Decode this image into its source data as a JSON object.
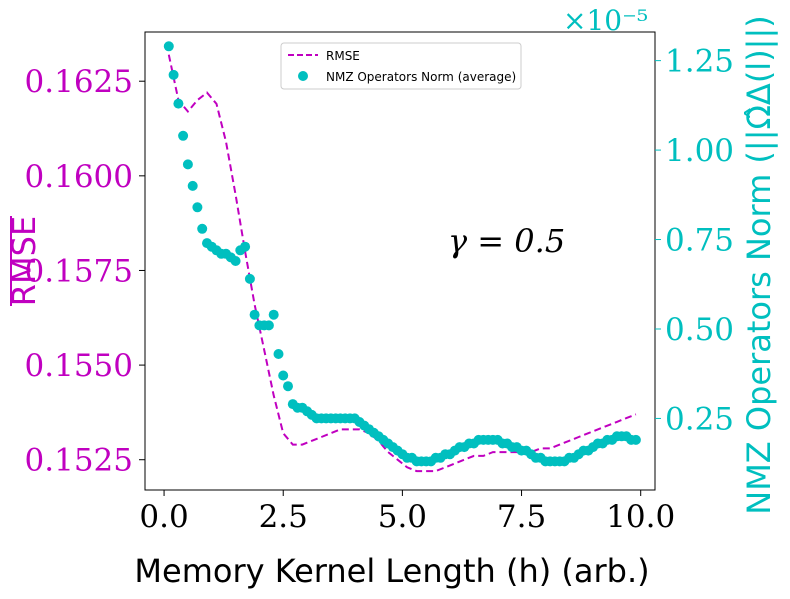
{
  "chart_data": {
    "type": "line+scatter",
    "xlabel": "Memory Kernel Length (h) (arb.)",
    "ylabel_left": "RMSE",
    "ylabel_right": "NMZ Operators Norm (||Ω̂Δ(l)||)",
    "right_offset_label": "×10⁻⁵",
    "annotation": "γ = 0.5",
    "xlim": [
      -0.4,
      10.3
    ],
    "ylim_left": [
      0.1517,
      0.1638
    ],
    "ylim_right": [
      5e-07,
      1.33e-05
    ],
    "x_ticks": [
      0.0,
      2.5,
      5.0,
      7.5,
      10.0
    ],
    "x_tick_labels": [
      "0.0",
      "2.5",
      "5.0",
      "7.5",
      "10.0"
    ],
    "y_left_ticks": [
      0.1525,
      0.155,
      0.1575,
      0.16,
      0.1625
    ],
    "y_left_tick_labels": [
      "0.1525",
      "0.1550",
      "0.1575",
      "0.1600",
      "0.1625"
    ],
    "y_right_ticks": [
      0.25,
      0.5,
      0.75,
      1.0,
      1.25
    ],
    "y_right_tick_labels": [
      "0.25",
      "0.50",
      "0.75",
      "1.00",
      "1.25"
    ],
    "colors": {
      "rmse": "#c000c0",
      "norm": "#00bfbf"
    },
    "legend": {
      "position": "top-center",
      "entries": [
        "RMSE",
        "NMZ Operators Norm (average)"
      ]
    },
    "series": [
      {
        "name": "RMSE",
        "style": "dashed-line",
        "axis": "left",
        "x": [
          0.1,
          0.3,
          0.5,
          0.7,
          0.9,
          1.1,
          1.3,
          1.5,
          1.7,
          1.9,
          2.1,
          2.3,
          2.5,
          2.7,
          2.9,
          3.1,
          3.3,
          3.5,
          3.7,
          3.9,
          4.1,
          4.3,
          4.5,
          4.7,
          4.9,
          5.1,
          5.3,
          5.5,
          5.7,
          5.9,
          6.1,
          6.3,
          6.5,
          6.7,
          6.9,
          7.1,
          7.3,
          7.5,
          7.7,
          7.9,
          8.1,
          8.3,
          8.5,
          8.7,
          8.9,
          9.1,
          9.3,
          9.5,
          9.7,
          9.9
        ],
        "y": [
          0.1632,
          0.162,
          0.1617,
          0.162,
          0.1622,
          0.1619,
          0.1609,
          0.1595,
          0.158,
          0.1566,
          0.1554,
          0.1542,
          0.1532,
          0.1529,
          0.1529,
          0.153,
          0.1531,
          0.1532,
          0.1533,
          0.1533,
          0.1533,
          0.1532,
          0.153,
          0.1527,
          0.1525,
          0.1523,
          0.1522,
          0.1522,
          0.1522,
          0.1523,
          0.1524,
          0.1525,
          0.1526,
          0.1526,
          0.1527,
          0.1527,
          0.1527,
          0.1527,
          0.1527,
          0.1528,
          0.1528,
          0.1529,
          0.153,
          0.1531,
          0.1532,
          0.1533,
          0.1534,
          0.1535,
          0.1536,
          0.1537
        ]
      },
      {
        "name": "NMZ Operators Norm (average)",
        "style": "scatter",
        "axis": "right",
        "unit_scale": "1e-5",
        "x": [
          0.1,
          0.2,
          0.3,
          0.4,
          0.5,
          0.6,
          0.7,
          0.8,
          0.9,
          1.0,
          1.1,
          1.2,
          1.3,
          1.4,
          1.5,
          1.6,
          1.7,
          1.8,
          1.9,
          2.0,
          2.1,
          2.2,
          2.3,
          2.4,
          2.5,
          2.6,
          2.7,
          2.8,
          2.9,
          3.0,
          3.1,
          3.2,
          3.3,
          3.4,
          3.5,
          3.6,
          3.7,
          3.8,
          3.9,
          4.0,
          4.1,
          4.2,
          4.3,
          4.4,
          4.5,
          4.6,
          4.7,
          4.8,
          4.9,
          5.0,
          5.1,
          5.2,
          5.3,
          5.4,
          5.5,
          5.6,
          5.7,
          5.8,
          5.9,
          6.0,
          6.1,
          6.2,
          6.3,
          6.4,
          6.5,
          6.6,
          6.7,
          6.8,
          6.9,
          7.0,
          7.1,
          7.2,
          7.3,
          7.4,
          7.5,
          7.6,
          7.7,
          7.8,
          7.9,
          8.0,
          8.1,
          8.2,
          8.3,
          8.4,
          8.5,
          8.6,
          8.7,
          8.8,
          8.9,
          9.0,
          9.1,
          9.2,
          9.3,
          9.4,
          9.5,
          9.6,
          9.7,
          9.8,
          9.9
        ],
        "y": [
          1.29,
          1.21,
          1.13,
          1.04,
          0.96,
          0.9,
          0.84,
          0.78,
          0.74,
          0.73,
          0.72,
          0.71,
          0.71,
          0.7,
          0.69,
          0.72,
          0.73,
          0.64,
          0.54,
          0.51,
          0.51,
          0.51,
          0.54,
          0.43,
          0.37,
          0.34,
          0.29,
          0.28,
          0.28,
          0.27,
          0.26,
          0.25,
          0.25,
          0.25,
          0.25,
          0.25,
          0.25,
          0.25,
          0.25,
          0.25,
          0.24,
          0.23,
          0.22,
          0.21,
          0.2,
          0.19,
          0.18,
          0.17,
          0.16,
          0.15,
          0.14,
          0.14,
          0.13,
          0.13,
          0.13,
          0.13,
          0.14,
          0.14,
          0.15,
          0.15,
          0.16,
          0.17,
          0.17,
          0.18,
          0.18,
          0.19,
          0.19,
          0.19,
          0.19,
          0.19,
          0.18,
          0.18,
          0.17,
          0.17,
          0.16,
          0.16,
          0.15,
          0.14,
          0.14,
          0.13,
          0.13,
          0.13,
          0.13,
          0.13,
          0.14,
          0.14,
          0.15,
          0.16,
          0.16,
          0.17,
          0.18,
          0.18,
          0.19,
          0.19,
          0.2,
          0.2,
          0.2,
          0.19,
          0.19
        ]
      }
    ]
  }
}
